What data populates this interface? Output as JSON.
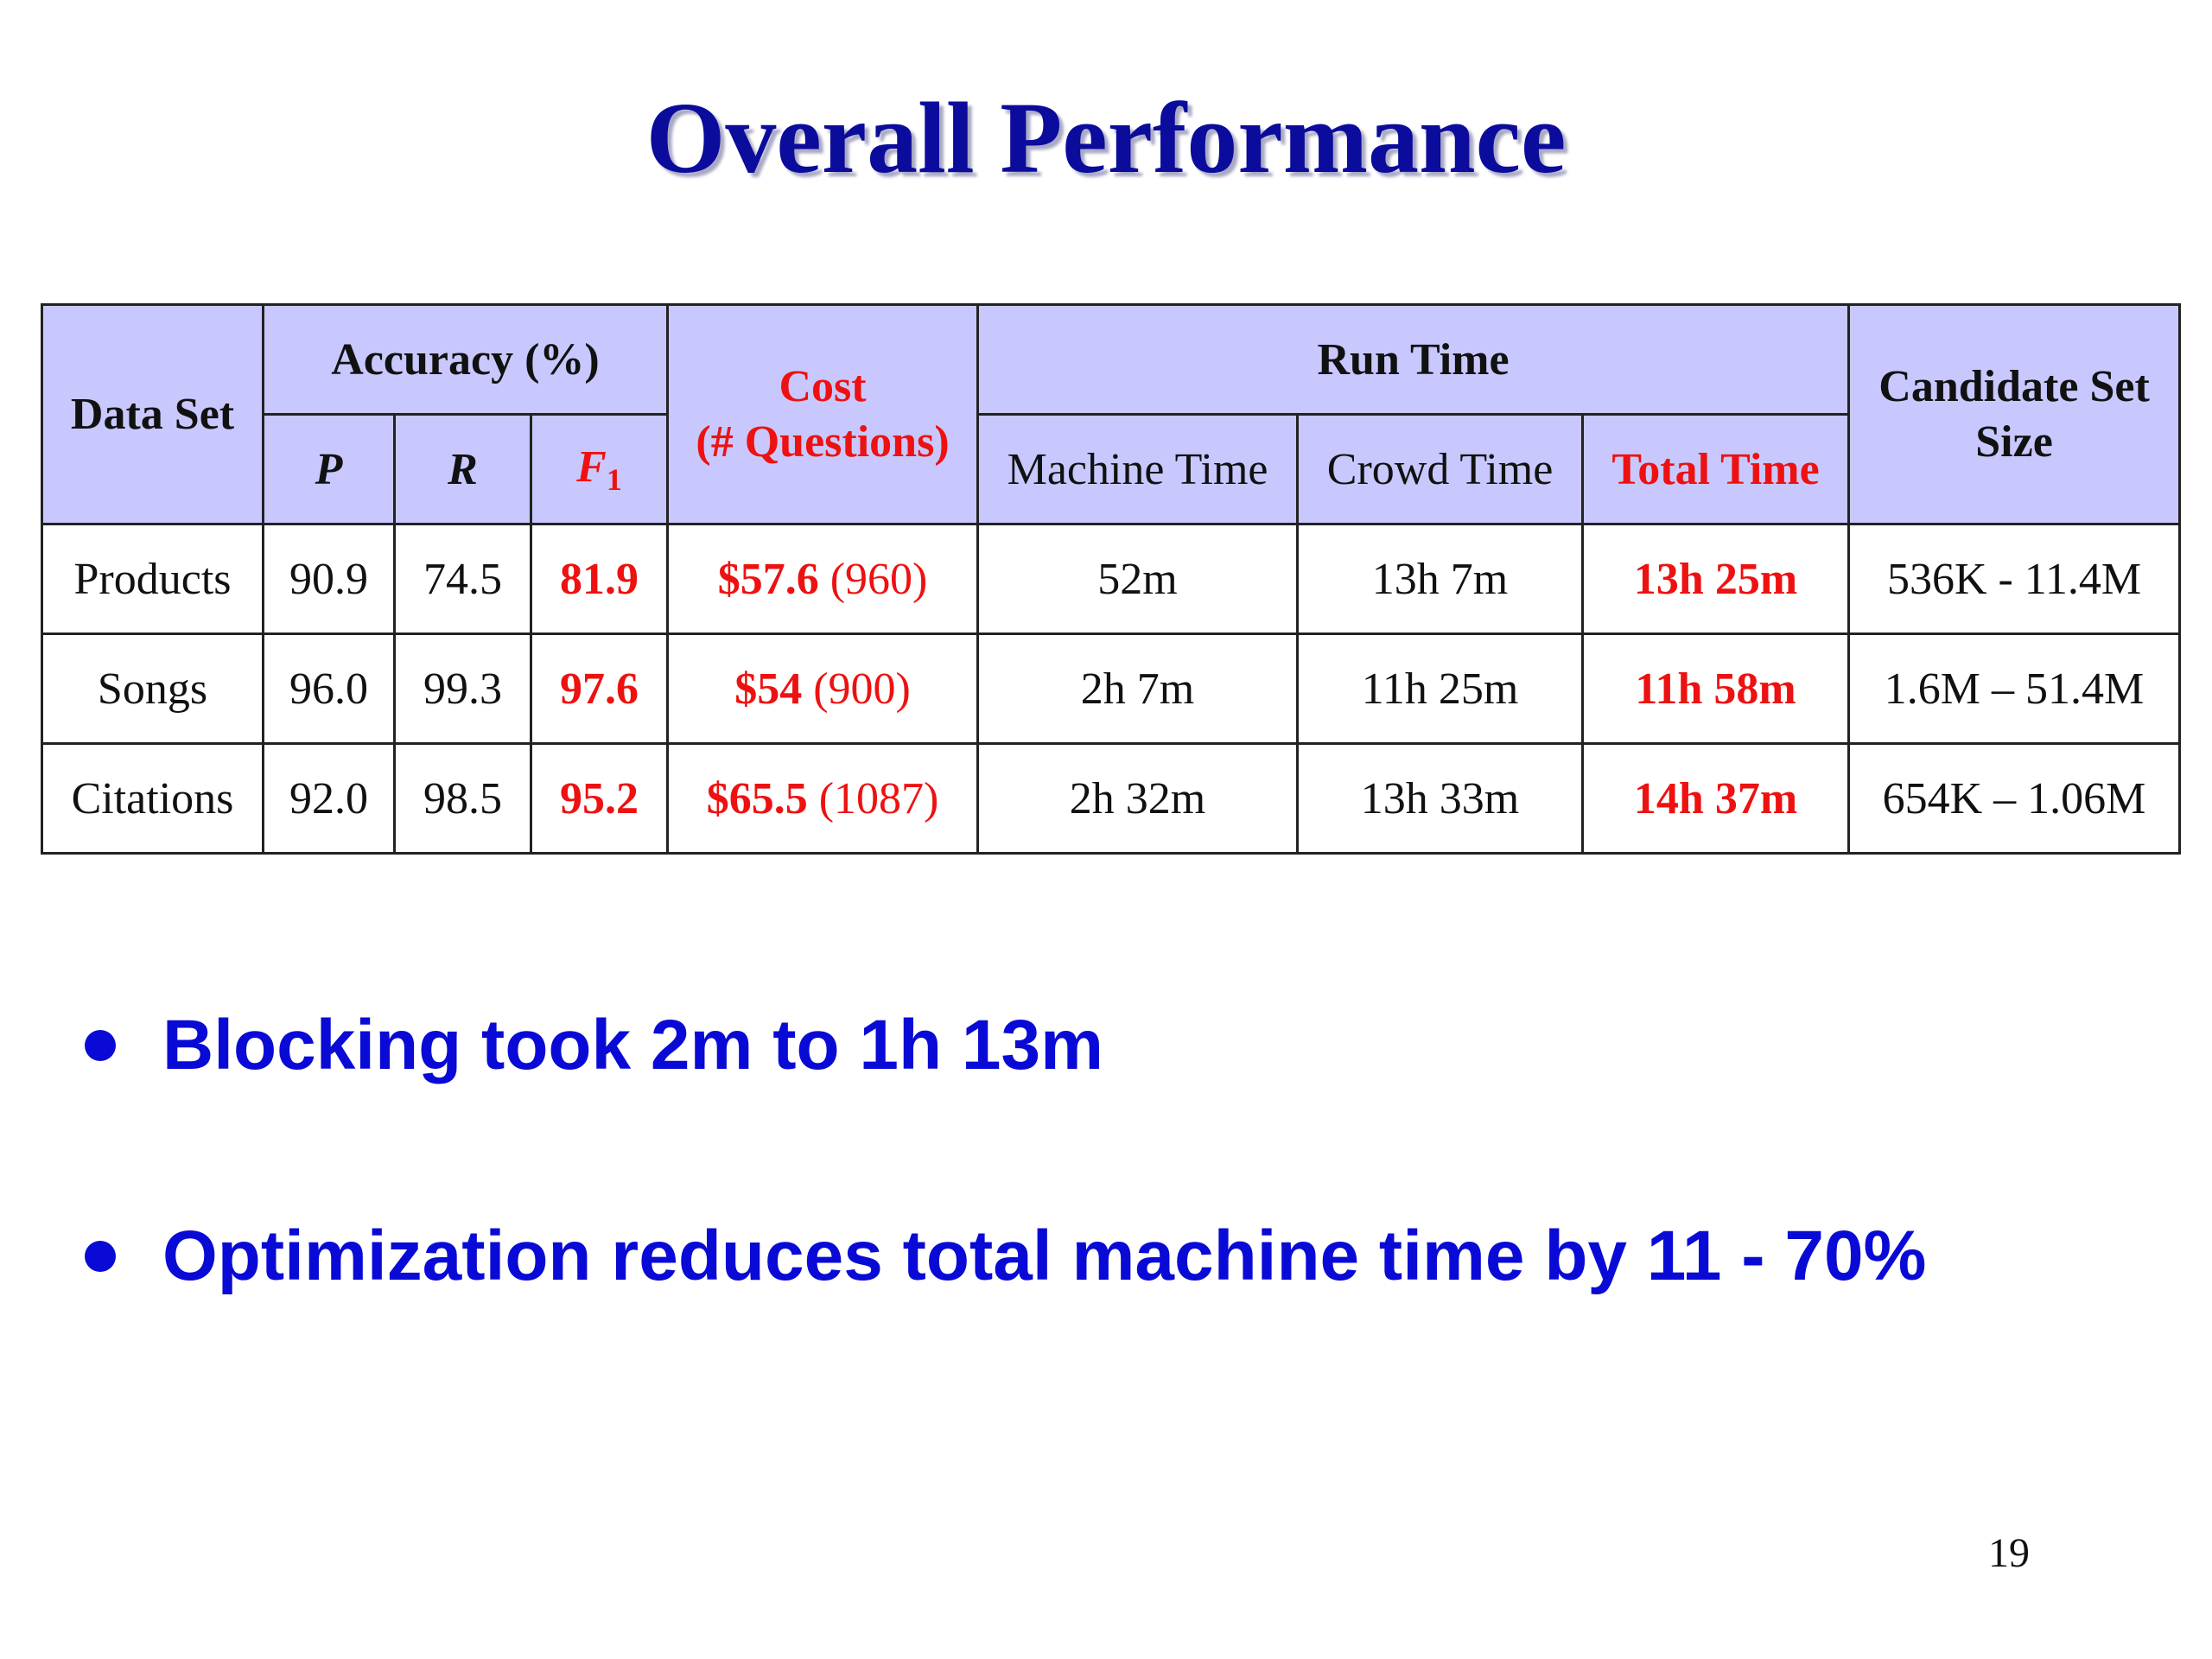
{
  "slide": {
    "title": "Overall Performance",
    "page_number": "19"
  },
  "table": {
    "headers": {
      "data_set": "Data Set",
      "accuracy": "Accuracy (%)",
      "p": "P",
      "r": "R",
      "f1_letter": "F",
      "f1_sub": "1",
      "cost_line1": "Cost",
      "cost_line2": "(# Questions)",
      "run_time": "Run Time",
      "machine_time": "Machine Time",
      "crowd_time": "Crowd Time",
      "total_time": "Total Time",
      "candidate_line1": "Candidate Set",
      "candidate_line2": "Size"
    },
    "rows": [
      {
        "data_set": "Products",
        "p": "90.9",
        "r": "74.5",
        "f1": "81.9",
        "cost": "$57.6",
        "questions": "(960)",
        "machine_time": "52m",
        "crowd_time": "13h 7m",
        "total_time": "13h 25m",
        "candidate_size": "536K - 11.4M"
      },
      {
        "data_set": "Songs",
        "p": "96.0",
        "r": "99.3",
        "f1": "97.6",
        "cost": "$54",
        "questions": "(900)",
        "machine_time": "2h 7m",
        "crowd_time": "11h 25m",
        "total_time": "11h 58m",
        "candidate_size": "1.6M – 51.4M"
      },
      {
        "data_set": "Citations",
        "p": "92.0",
        "r": "98.5",
        "f1": "95.2",
        "cost": "$65.5",
        "questions": "(1087)",
        "machine_time": "2h 32m",
        "crowd_time": "13h 33m",
        "total_time": "14h 37m",
        "candidate_size": "654K – 1.06M"
      }
    ]
  },
  "bullets": [
    "Blocking took 2m to 1h 13m",
    "Optimization reduces total machine time by 11 - 70%"
  ],
  "colors": {
    "title": "#0b0b9c",
    "header_bg": "#c8c8ff",
    "highlight_red": "#ee1111",
    "bullet_blue": "#0a0ad6"
  }
}
